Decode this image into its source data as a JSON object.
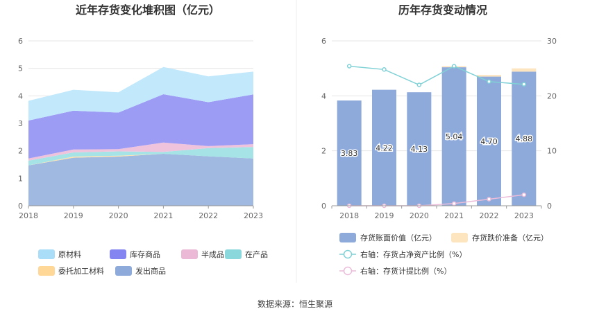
{
  "source_note": "数据来源：恒生聚源",
  "chart_data": [
    {
      "type": "area",
      "stacked": true,
      "title": "近年存货变化堆积图（亿元）",
      "x": [
        "2018",
        "2019",
        "2020",
        "2021",
        "2022",
        "2023"
      ],
      "ylim": [
        0,
        6
      ],
      "yticks": [
        "0",
        "1",
        "2",
        "3",
        "4",
        "5",
        "6"
      ],
      "grid": true,
      "legend_position": "bottom",
      "series": [
        {
          "name": "发出商品",
          "color": "#9fb9e0",
          "values": [
            1.47,
            1.75,
            1.79,
            1.89,
            1.8,
            1.72
          ]
        },
        {
          "name": "委托加工材料",
          "color": "#ffe2ad",
          "values": [
            0.0,
            0.04,
            0.03,
            0.0,
            0.0,
            0.0
          ]
        },
        {
          "name": "在产品",
          "color": "#a6e3e6",
          "values": [
            0.17,
            0.15,
            0.16,
            0.07,
            0.3,
            0.42
          ]
        },
        {
          "name": "半成品",
          "color": "#f0c3dd",
          "values": [
            0.08,
            0.11,
            0.08,
            0.34,
            0.07,
            0.1
          ]
        },
        {
          "name": "库存商品",
          "color": "#9c9cf5",
          "values": [
            1.38,
            1.41,
            1.33,
            1.76,
            1.6,
            1.81
          ]
        },
        {
          "name": "原材料",
          "color": "#c2e8fb",
          "values": [
            0.72,
            0.76,
            0.74,
            0.99,
            0.94,
            0.83
          ]
        }
      ],
      "legend": [
        {
          "name": "原材料",
          "color": "#a9ddf8"
        },
        {
          "name": "库存商品",
          "color": "#8585f2"
        },
        {
          "name": "半成品",
          "color": "#ebb8d6"
        },
        {
          "name": "在产品",
          "color": "#8ad8dc"
        },
        {
          "name": "委托加工材料",
          "color": "#ffd898"
        },
        {
          "name": "发出商品",
          "color": "#8eaadb"
        }
      ]
    },
    {
      "type": "bar",
      "title": "历年存货变动情况",
      "categories": [
        "2018",
        "2019",
        "2020",
        "2021",
        "2022",
        "2023"
      ],
      "ylim": [
        0,
        6
      ],
      "yticks": [
        "0",
        "2",
        "4",
        "6"
      ],
      "y2lim": [
        0,
        30
      ],
      "y2ticks": [
        "0",
        "10",
        "20",
        "30"
      ],
      "grid": true,
      "legend_position": "bottom",
      "series": [
        {
          "name": "存货账面价值（亿元）",
          "color": "#8eaadb",
          "axis": "left",
          "kind": "bar",
          "values": [
            3.83,
            4.22,
            4.13,
            5.04,
            4.7,
            4.88
          ],
          "labels": [
            "3.83",
            "4.22",
            "4.13",
            "5.04",
            "4.70",
            "4.88"
          ]
        },
        {
          "name": "存货跌价准备（亿元）",
          "color": "#fde6bf",
          "axis": "left",
          "kind": "bar",
          "values": [
            0.0,
            0.0,
            0.0,
            0.04,
            0.06,
            0.12
          ]
        },
        {
          "name": "右轴：存货占净资产比例（%）",
          "color": "#7fd1d6",
          "axis": "right",
          "kind": "line",
          "values": [
            25.4,
            24.8,
            22.0,
            25.4,
            22.6,
            22.1
          ]
        },
        {
          "name": "右轴：存货计提比例（%）",
          "color": "#ebbcd9",
          "axis": "right",
          "kind": "line",
          "values": [
            0.0,
            0.0,
            0.0,
            0.4,
            1.2,
            2.0
          ]
        }
      ]
    }
  ]
}
